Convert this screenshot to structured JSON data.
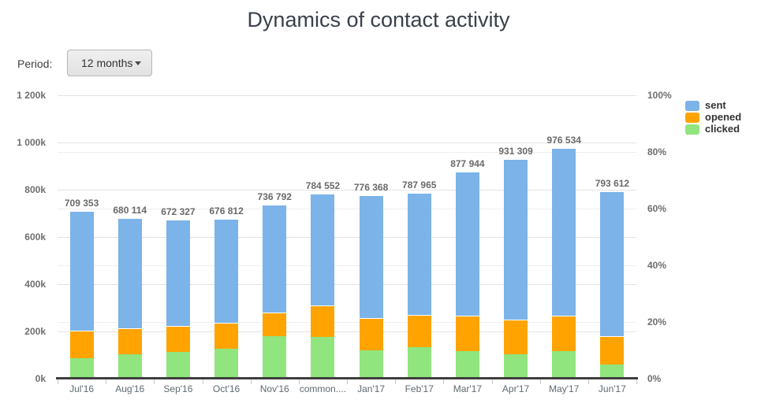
{
  "title": "Dynamics of contact activity",
  "period": {
    "label": "Period:",
    "value": "12 months"
  },
  "legend": [
    {
      "label": "sent",
      "color": "#7cb3e8"
    },
    {
      "label": "opened",
      "color": "#ffa300"
    },
    {
      "label": "clicked",
      "color": "#90e57e"
    }
  ],
  "chart_data": {
    "type": "bar",
    "stacked": true,
    "title": "Dynamics of contact activity",
    "categories": [
      "Jul'16",
      "Aug'16",
      "Sep'16",
      "Oct'16",
      "Nov'16",
      "common....",
      "Jan'17",
      "Feb'17",
      "Mar'17",
      "Apr'17",
      "May'17",
      "Jun'17"
    ],
    "series": [
      {
        "name": "sent",
        "color": "#7cb3e8",
        "role": "stack-total",
        "values": [
          709353,
          680114,
          672327,
          676812,
          736792,
          784552,
          776368,
          787965,
          877944,
          931309,
          976534,
          793612
        ],
        "value_labels": [
          "709 353",
          "680 114",
          "672 327",
          "676 812",
          "736 792",
          "784 552",
          "776 368",
          "787 965",
          "877 944",
          "931 309",
          "976 534",
          "793 612"
        ]
      },
      {
        "name": "opened",
        "color": "#ffa300",
        "values": [
          115000,
          110000,
          111000,
          112000,
          100000,
          134000,
          136000,
          137000,
          148000,
          146000,
          152000,
          121000
        ]
      },
      {
        "name": "clicked",
        "color": "#90e57e",
        "values": [
          87000,
          104000,
          112000,
          126000,
          179000,
          176000,
          120000,
          134000,
          118000,
          103000,
          116000,
          60000
        ]
      }
    ],
    "left_axis": {
      "ticks": [
        "1 200k",
        "1 000k",
        "800k",
        "600k",
        "400k",
        "200k",
        "0k"
      ],
      "max": 1200000,
      "min": 0
    },
    "right_axis": {
      "ticks": [
        "100%",
        "80%",
        "60%",
        "40%",
        "20%",
        "0%"
      ],
      "max": 100,
      "min": 0
    },
    "grid": true,
    "legend_position": "top-right"
  }
}
